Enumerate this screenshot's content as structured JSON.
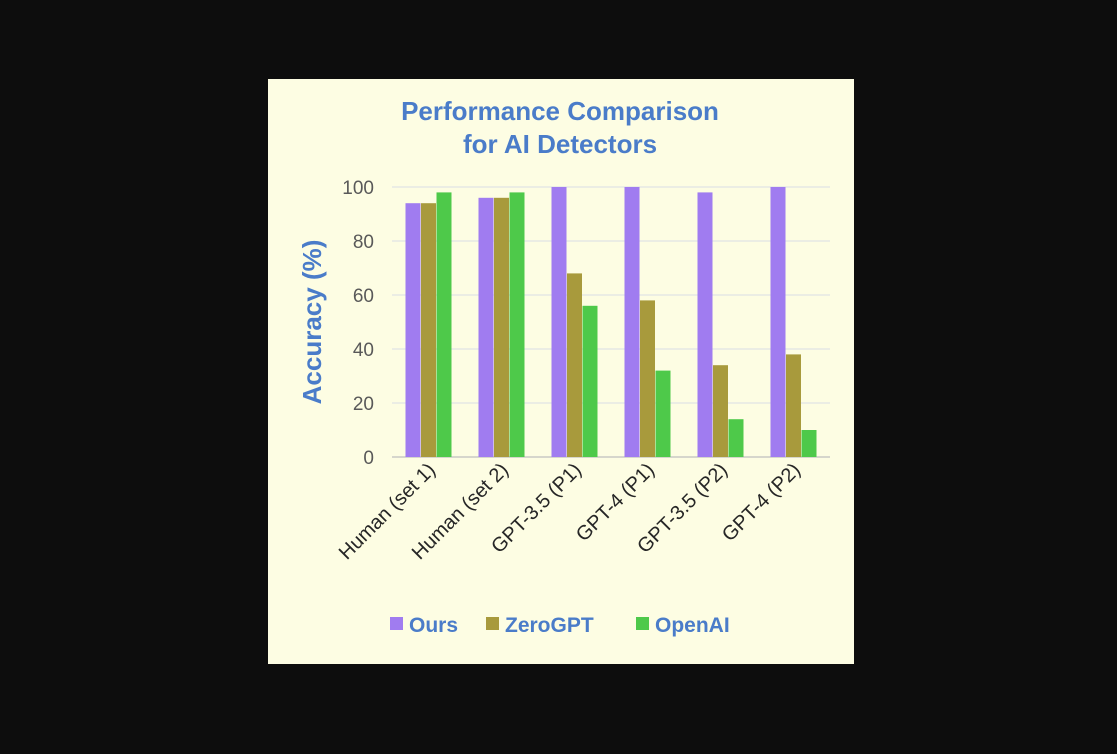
{
  "chart_data": {
    "type": "bar",
    "title_lines": [
      "Performance Comparison",
      "for AI Detectors"
    ],
    "xlabel": "",
    "ylabel": "Accuracy (%)",
    "ylim": [
      0,
      100
    ],
    "yticks": [
      0,
      20,
      40,
      60,
      80,
      100
    ],
    "grid": true,
    "legend_position": "bottom",
    "categories": [
      "Human (set 1)",
      "Human (set 2)",
      "GPT-3.5 (P1)",
      "GPT-4 (P1)",
      "GPT-3.5 (P2)",
      "GPT-4 (P2)"
    ],
    "series": [
      {
        "name": "Ours",
        "color": "#a07cf0",
        "values": [
          94,
          96,
          100,
          100,
          98,
          100
        ]
      },
      {
        "name": "ZeroGPT",
        "color": "#a89a3c",
        "values": [
          94,
          96,
          68,
          58,
          34,
          38
        ]
      },
      {
        "name": "OpenAI",
        "color": "#4ec94a",
        "values": [
          98,
          98,
          56,
          32,
          14,
          10
        ]
      }
    ]
  }
}
